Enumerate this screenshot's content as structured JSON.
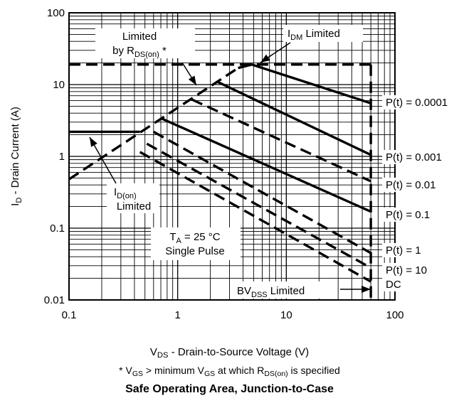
{
  "chart_data": {
    "type": "line",
    "title": "Safe Operating Area, Junction-to-Case",
    "xlabel": {
      "main": "V",
      "sub": "DS",
      "rest": " - Drain-to-Source Voltage (V)"
    },
    "ylabel": {
      "main": "I",
      "sub": "D",
      "rest": " - Drain Current (A)"
    },
    "footnote": {
      "a": "* V",
      "a_sub": "GS",
      "b": " > minimum V",
      "b_sub": "GS",
      "c": " at which R",
      "c_sub": "DS(on)",
      "d": " is specified"
    },
    "x_scale": "log",
    "y_scale": "log",
    "xlim": [
      0.1,
      100
    ],
    "ylim": [
      0.01,
      100
    ],
    "x_ticks": [
      "0.1",
      "1",
      "10",
      "100"
    ],
    "y_ticks": [
      "0.01",
      "0.1",
      "1",
      "10",
      "100"
    ],
    "grid": true,
    "series": [
      {
        "name": "I_D(on) Limited",
        "style": "solid",
        "points": [
          [
            0.1,
            2.2
          ],
          [
            0.45,
            2.2
          ]
        ]
      },
      {
        "name": "Limited by R_DS(on) *",
        "style": "dashed",
        "points": [
          [
            0.1,
            0.48
          ],
          [
            3.6,
            17
          ]
        ]
      },
      {
        "name": "I_DM Limited",
        "style": "dashed",
        "points": [
          [
            0.1,
            19
          ],
          [
            60,
            19
          ]
        ]
      },
      {
        "name": "BV_DSS Limited",
        "style": "dashed",
        "points": [
          [
            60,
            19
          ],
          [
            60,
            0.01
          ]
        ]
      },
      {
        "name": "P(t) = 0.0001",
        "style": "solid",
        "points": [
          [
            3.6,
            17
          ],
          [
            4.8,
            19
          ],
          [
            60,
            5.5
          ]
        ]
      },
      {
        "name": "P(t) = 0.001",
        "style": "solid",
        "points": [
          [
            2.3,
            11
          ],
          [
            60,
            1.05
          ]
        ]
      },
      {
        "name": "P(t) = 0.01",
        "style": "dashed",
        "points": [
          [
            1.35,
            6.2
          ],
          [
            60,
            0.45
          ]
        ]
      },
      {
        "name": "P(t) = 0.1",
        "style": "solid",
        "points": [
          [
            0.7,
            3.4
          ],
          [
            60,
            0.17
          ]
        ]
      },
      {
        "name": "P(t) = 1",
        "style": "dashed",
        "points": [
          [
            0.6,
            2.2
          ],
          [
            60,
            0.045
          ]
        ]
      },
      {
        "name": "P(t) = 10",
        "style": "dashed",
        "points": [
          [
            0.52,
            1.5
          ],
          [
            60,
            0.028
          ]
        ]
      },
      {
        "name": "DC",
        "style": "dashed",
        "points": [
          [
            0.45,
            1.15
          ],
          [
            60,
            0.018
          ]
        ]
      }
    ],
    "annotations": {
      "rds": {
        "line1": "Limited",
        "line2a": "by R",
        "line2sub": "DS(on)",
        "line2b": " *"
      },
      "idm": {
        "a": "I",
        "sub": "DM",
        "b": " Limited"
      },
      "idon": {
        "a": "I",
        "sub": "D(on)",
        "line2": "Limited"
      },
      "ta": {
        "a": "T",
        "sub": "A",
        "b": " = 25 °C",
        "line2": "Single Pulse"
      },
      "bv": {
        "a": "BV",
        "sub": "DSS",
        "b": " Limited"
      },
      "pt_labels": [
        "P(t) = 0.0001",
        "P(t) = 0.001",
        "P(t) = 0.01",
        "P(t) = 0.1",
        "P(t) = 1",
        "P(t) = 10",
        "DC"
      ]
    }
  }
}
